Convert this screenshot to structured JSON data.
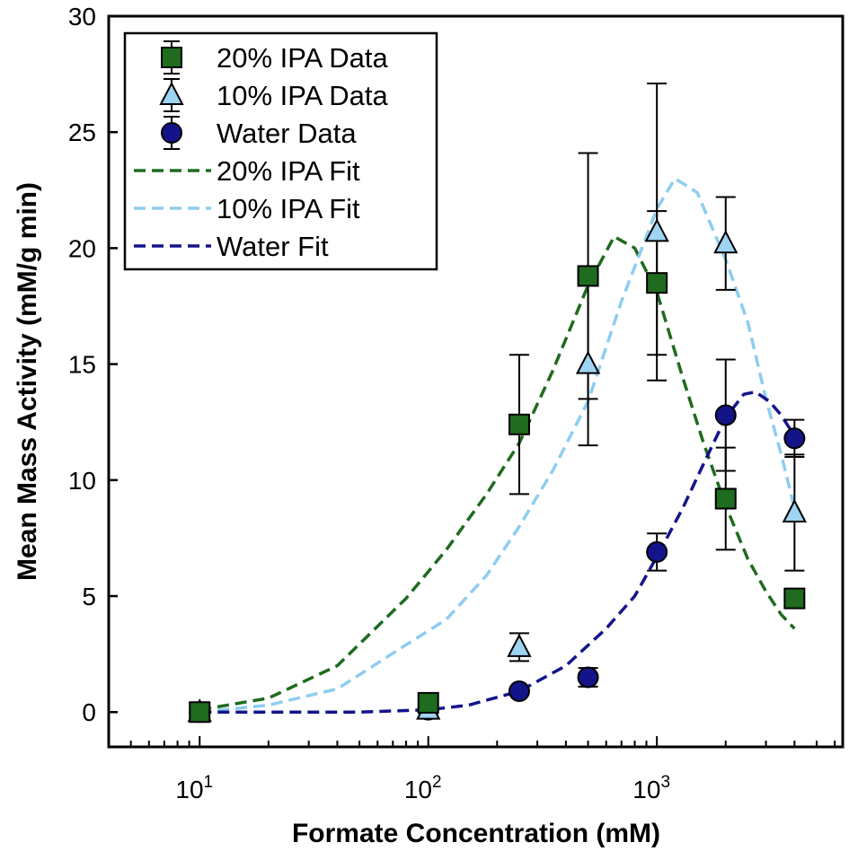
{
  "chart_data": {
    "type": "scatter",
    "xlabel": "Formate Concentration (mM)",
    "ylabel": "Mean Mass Activity (mM/g min)",
    "xscale": "log",
    "xlim": [
      4,
      6500
    ],
    "ylim": [
      -1.5,
      30
    ],
    "x_ticks": [
      {
        "value": 10,
        "base": "10",
        "exp": "1"
      },
      {
        "value": 100,
        "base": "10",
        "exp": "2"
      },
      {
        "value": 1000,
        "base": "10",
        "exp": "3"
      }
    ],
    "y_ticks": [
      0,
      5,
      10,
      15,
      20,
      25,
      30
    ],
    "legend_position": "top-left",
    "series": [
      {
        "name": "20% IPA Data",
        "kind": "data",
        "marker": "square",
        "color": "#1f6b1f",
        "x": [
          10,
          100,
          250,
          500,
          1000,
          2000,
          4000
        ],
        "y": [
          0.0,
          0.4,
          12.4,
          18.8,
          18.5,
          9.2,
          4.9
        ],
        "err": [
          0.0,
          0.0,
          3.0,
          5.3,
          3.1,
          2.2,
          0.0
        ]
      },
      {
        "name": "10% IPA Data",
        "kind": "data",
        "marker": "triangle",
        "color": "#9fd3f2",
        "x": [
          10,
          100,
          250,
          500,
          1000,
          2000,
          4000
        ],
        "y": [
          0.0,
          0.1,
          2.8,
          15.0,
          20.7,
          20.2,
          8.6
        ],
        "err": [
          0.0,
          0.0,
          0.6,
          3.5,
          6.4,
          2.0,
          2.5
        ]
      },
      {
        "name": "Water Data",
        "kind": "data",
        "marker": "circle",
        "color": "#14148a",
        "x": [
          10,
          100,
          250,
          500,
          1000,
          2000,
          4000
        ],
        "y": [
          0.0,
          0.1,
          0.9,
          1.5,
          6.9,
          12.8,
          11.8
        ],
        "err": [
          0.0,
          0.0,
          0.0,
          0.4,
          0.8,
          2.4,
          0.8
        ]
      },
      {
        "name": "20% IPA Fit",
        "kind": "fit",
        "color": "#1f6b1f",
        "x": [
          10,
          20,
          40,
          80,
          120,
          180,
          250,
          350,
          500,
          650,
          800,
          1000,
          1300,
          1600,
          2000,
          2500,
          3000,
          3500,
          4000
        ],
        "y": [
          0.1,
          0.6,
          2.0,
          4.9,
          7.0,
          9.4,
          11.6,
          14.7,
          18.4,
          20.5,
          20.0,
          18.1,
          14.4,
          11.6,
          8.9,
          6.6,
          5.2,
          4.2,
          3.6
        ]
      },
      {
        "name": "10% IPA Fit",
        "kind": "fit",
        "color": "#8ecdf0",
        "x": [
          10,
          20,
          40,
          80,
          120,
          180,
          250,
          350,
          500,
          700,
          900,
          1000,
          1200,
          1500,
          2000,
          2500,
          3000,
          3500,
          4000
        ],
        "y": [
          0.0,
          0.3,
          1.0,
          2.9,
          4.0,
          5.9,
          8.0,
          10.4,
          13.4,
          17.7,
          20.5,
          21.7,
          23.0,
          22.4,
          19.5,
          16.8,
          13.5,
          11.1,
          8.8
        ]
      },
      {
        "name": "Water Fit",
        "kind": "fit",
        "color": "#14148a",
        "x": [
          10,
          50,
          100,
          150,
          250,
          400,
          600,
          800,
          1000,
          1300,
          1600,
          2000,
          2400,
          2700,
          3100,
          3500,
          4000
        ],
        "y": [
          0.0,
          0.0,
          0.1,
          0.3,
          0.9,
          2.0,
          3.6,
          5.0,
          6.7,
          8.8,
          10.7,
          12.7,
          13.7,
          13.8,
          13.4,
          12.8,
          11.9
        ]
      }
    ]
  }
}
